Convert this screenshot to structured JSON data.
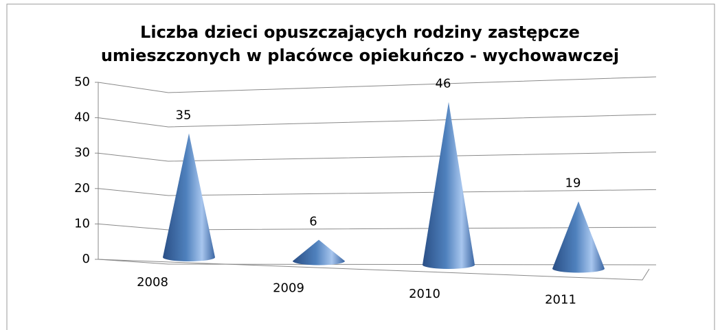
{
  "chart_data": {
    "type": "cone",
    "title": "Liczba dzieci opuszczających rodziny zastępcze umieszczonych w placówce opiekuńczo - wychowawczej",
    "categories": [
      "2008",
      "2009",
      "2010",
      "2011"
    ],
    "values": [
      35,
      6,
      46,
      19
    ],
    "color": "#4f81bd",
    "ylim": [
      0,
      50
    ],
    "yticks": [
      0,
      10,
      20,
      30,
      40,
      50
    ],
    "grid": true
  }
}
